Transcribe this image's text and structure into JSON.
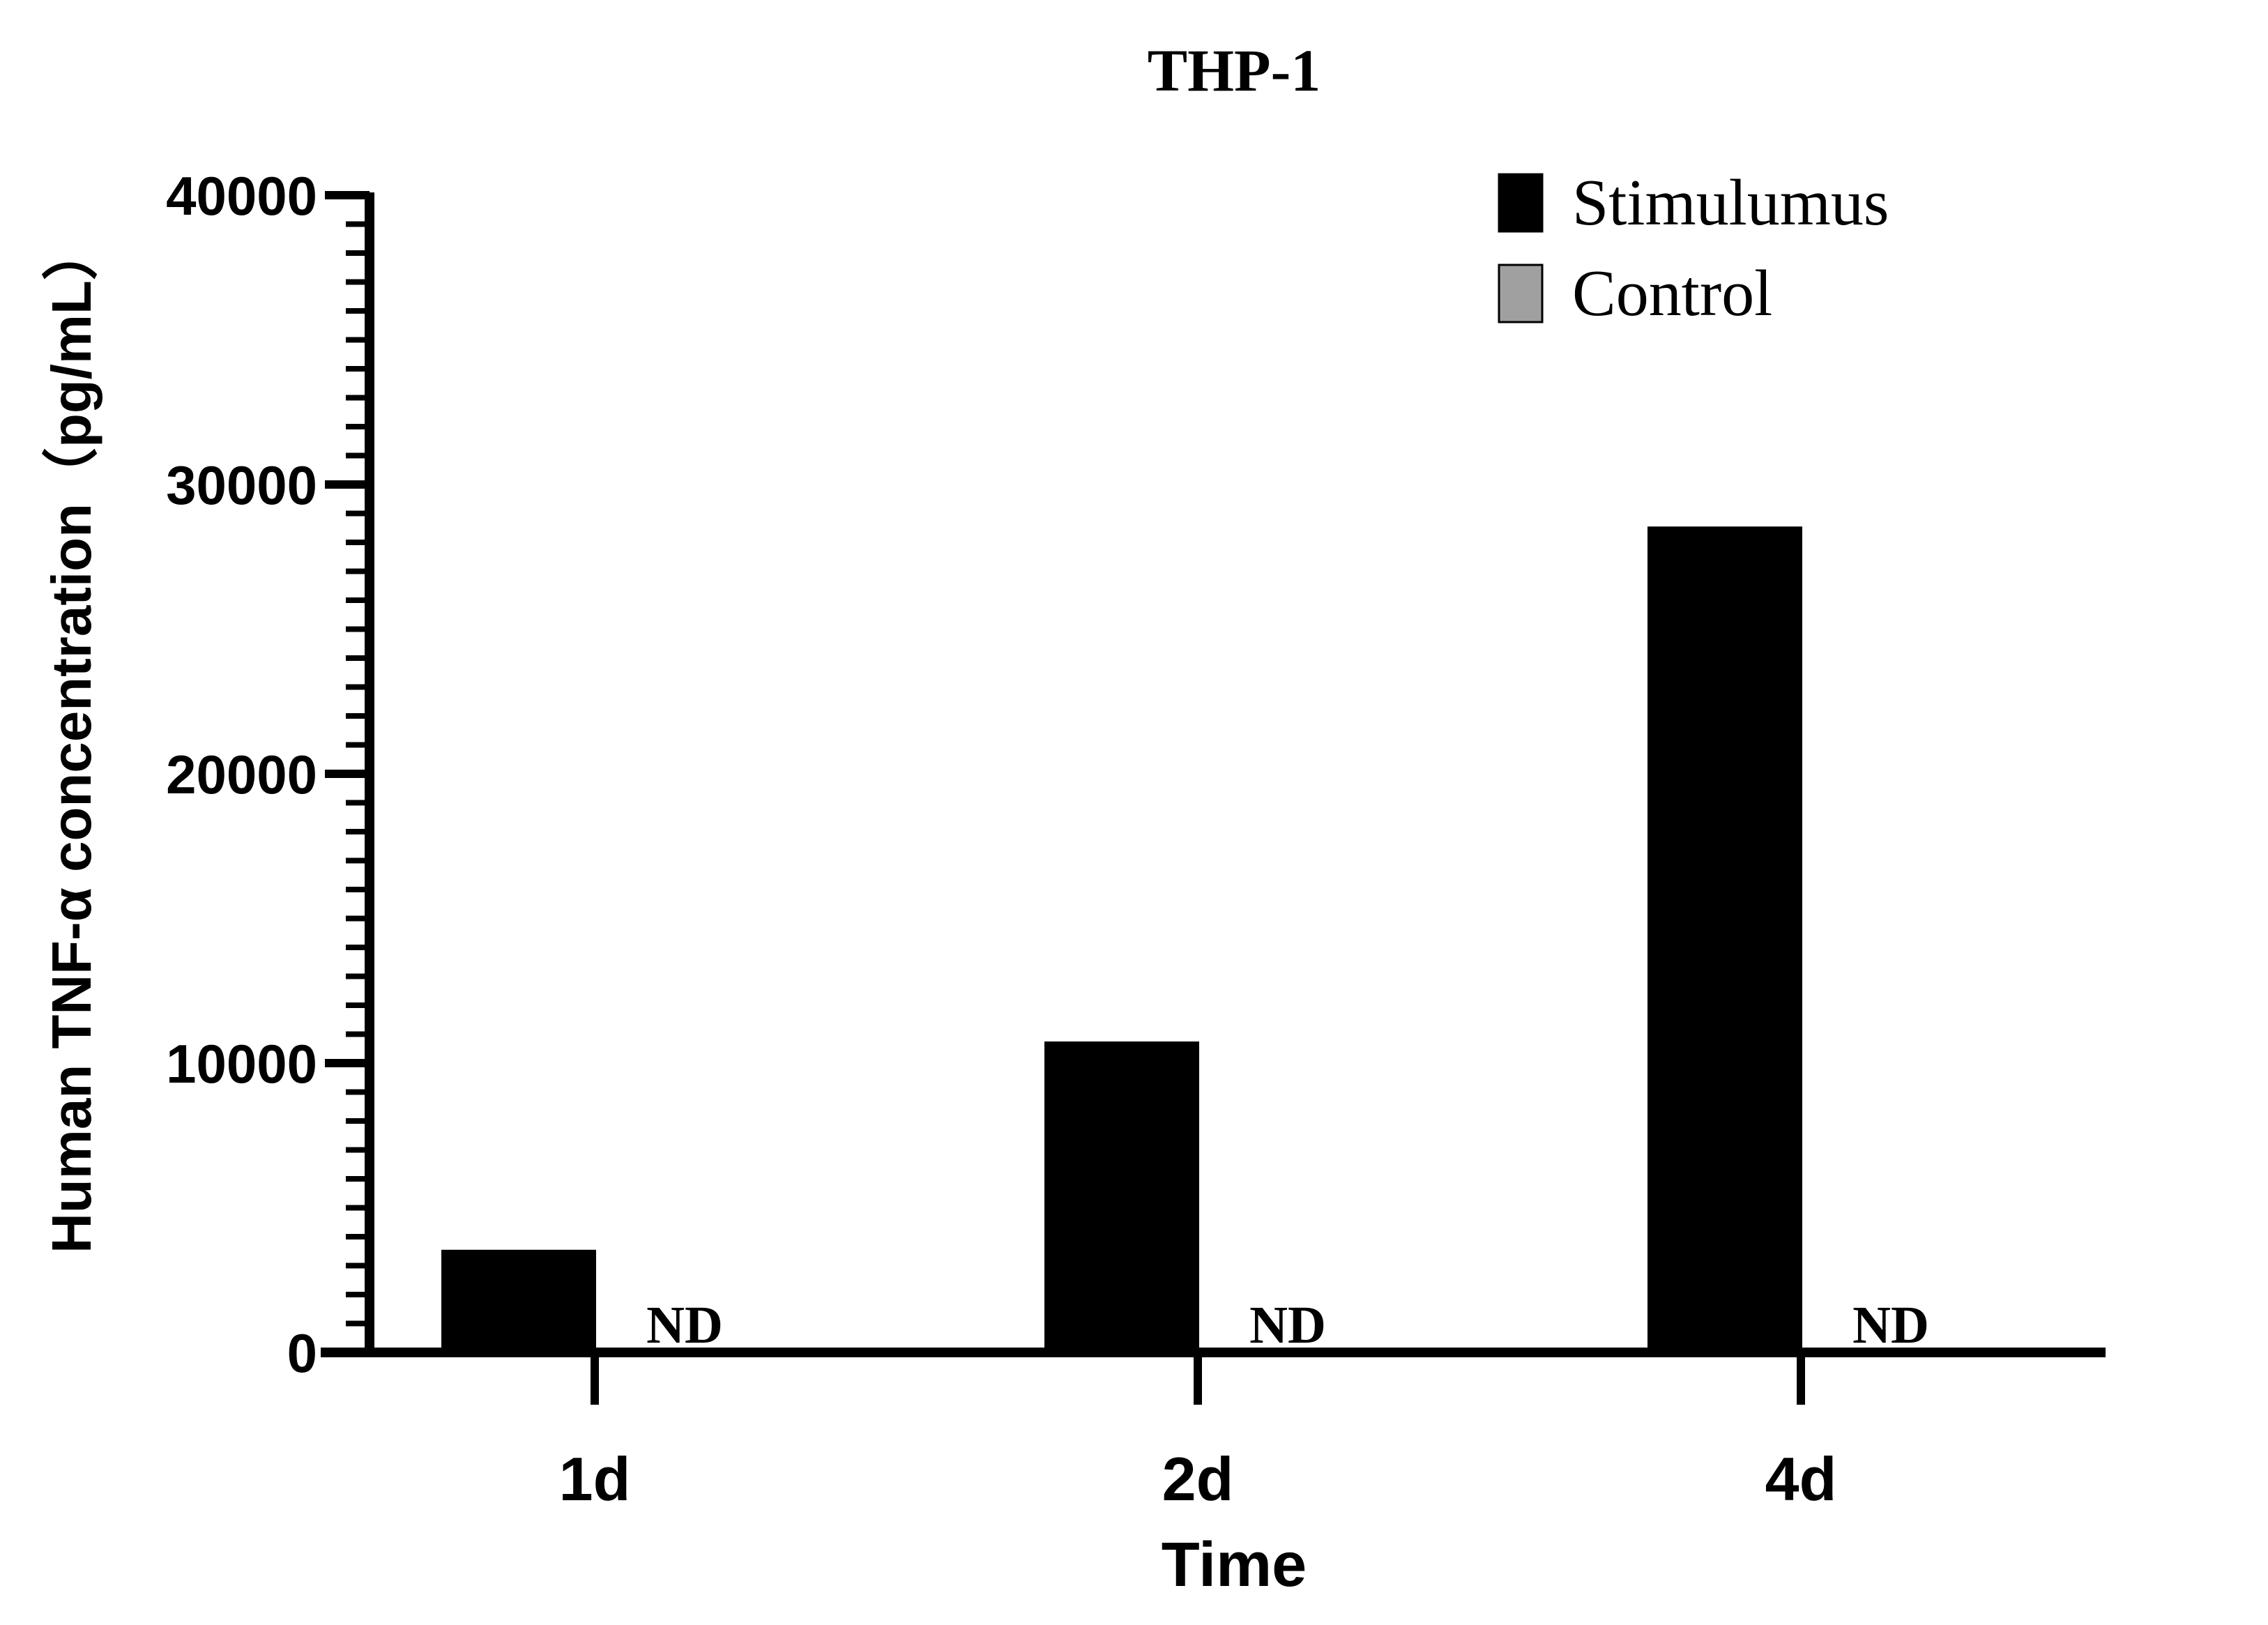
{
  "chart_data": {
    "type": "bar",
    "title": "THP-1",
    "xlabel": "Time",
    "ylabel": "Human TNF-α concentration（pg/mL）",
    "categories": [
      "1d",
      "2d",
      "4d"
    ],
    "series": [
      {
        "name": "Stimulumus",
        "values": [
          3500,
          10700,
          28500
        ],
        "color": "#000000"
      },
      {
        "name": "Control",
        "values": [
          null,
          null,
          null
        ],
        "color": "#a0a0a0"
      }
    ],
    "annotations": [
      "ND",
      "ND",
      "ND"
    ],
    "ylim": [
      0,
      40000
    ],
    "yticks": [
      0,
      10000,
      20000,
      30000,
      40000
    ],
    "yminor_per_major": 10,
    "grid": false,
    "legend_position": "top-right"
  }
}
